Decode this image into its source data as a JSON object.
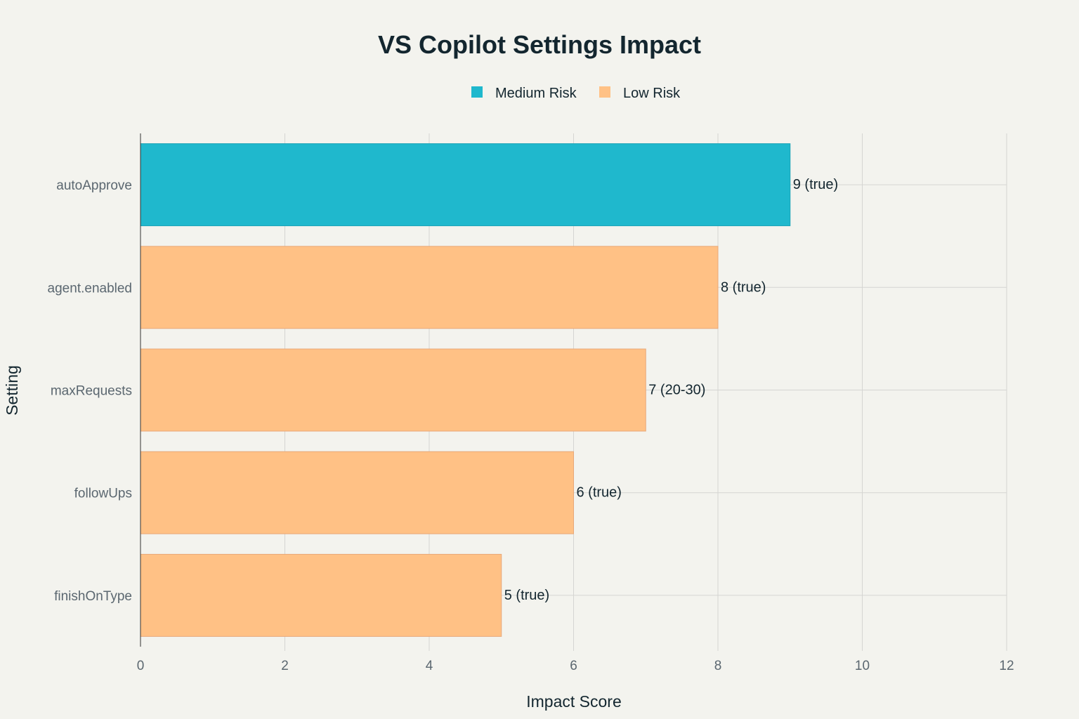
{
  "chart_data": {
    "type": "bar",
    "orientation": "horizontal",
    "title": "VS Copilot Settings Impact",
    "xlabel": "Impact Score",
    "ylabel": "Setting",
    "xlim": [
      0,
      12
    ],
    "xticks": [
      0,
      2,
      4,
      6,
      8,
      10,
      12
    ],
    "grid": true,
    "legend_position": "top-center",
    "legend": [
      {
        "name": "Medium Risk",
        "color": "#1fb8cd"
      },
      {
        "name": "Low Risk",
        "color": "#ffc185"
      }
    ],
    "bars": [
      {
        "category": "autoApprove",
        "value": 9,
        "label": "9 (true)",
        "series": "Medium Risk"
      },
      {
        "category": "agent.enabled",
        "value": 8,
        "label": "8 (true)",
        "series": "Low Risk"
      },
      {
        "category": "maxRequests",
        "value": 7,
        "label": "7 (20-30)",
        "series": "Low Risk"
      },
      {
        "category": "followUps",
        "value": 6,
        "label": "6 (true)",
        "series": "Low Risk"
      },
      {
        "category": "finishOnType",
        "value": 5,
        "label": "5 (true)",
        "series": "Low Risk"
      }
    ]
  }
}
